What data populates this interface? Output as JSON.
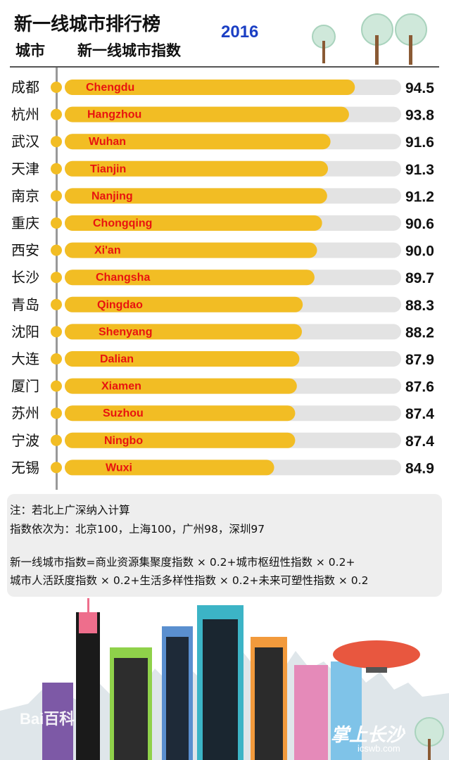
{
  "header": {
    "title": "新一线城市排行榜",
    "year": "2016",
    "col_city": "城市",
    "col_index": "新一线城市指数"
  },
  "colors": {
    "bar": "#f2bd24",
    "track": "#e3e3e3",
    "dot": "#f2bd24",
    "label_en": "#e8140f",
    "year": "#1b3fc4"
  },
  "chart_data": {
    "type": "bar",
    "orientation": "horizontal",
    "title": "新一线城市排行榜",
    "categories": [
      "成都",
      "杭州",
      "武汉",
      "天津",
      "南京",
      "重庆",
      "西安",
      "长沙",
      "青岛",
      "沈阳",
      "大连",
      "厦门",
      "苏州",
      "宁波",
      "无锡"
    ],
    "labels_en": [
      "Chengdu",
      "Hangzhou",
      "Wuhan",
      "Tianjin",
      "Nanjing",
      "Chongqing",
      "Xi'an",
      "Changsha",
      "Qingdao",
      "Shenyang",
      "Dalian",
      "Xiamen",
      "Suzhou",
      "Ningbo",
      "Wuxi"
    ],
    "value_labels": [
      "94.5",
      "93.8",
      "91.6",
      "91.3",
      "91.2",
      "90.6",
      "90.0",
      "89.7",
      "88.3",
      "88.2",
      "87.9",
      "87.6",
      "87.4",
      "87.4",
      "84.9"
    ],
    "series": [
      {
        "values": [
          94.5,
          93.8,
          91.6,
          91.3,
          91.2,
          90.6,
          90.0,
          89.7,
          88.3,
          88.2,
          87.9,
          87.6,
          87.4,
          87.4,
          84.9
        ]
      }
    ]
  },
  "notes": {
    "line1": "注：若北上广深纳入计算",
    "line2": "指数依次为：北京100，上海100，广州98，深圳97",
    "line3": "新一线城市指数=商业资源集聚度指数 × 0.2+城市枢纽性指数 × 0.2+",
    "line4": "城市人活跃度指数 × 0.2+生活多样性指数 × 0.2+未来可塑性指数 × 0.2"
  },
  "footer": {
    "watermark": "Bai百科",
    "brand": "掌上长沙",
    "brand_url": "icswb.com"
  }
}
